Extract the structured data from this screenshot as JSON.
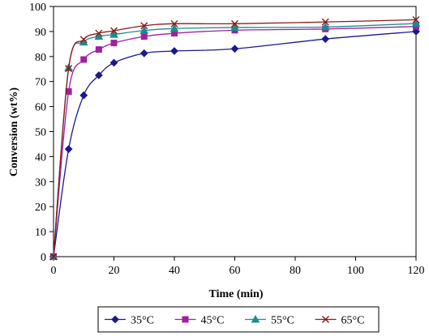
{
  "chart_data": {
    "type": "line",
    "xlabel": "Time (min)",
    "ylabel": "Conversion (wt%)",
    "xlim": [
      0,
      120
    ],
    "ylim": [
      0,
      100
    ],
    "x_ticks": [
      "0",
      "20",
      "40",
      "60",
      "80",
      "100",
      "120"
    ],
    "y_ticks": [
      "0",
      "10",
      "20",
      "30",
      "40",
      "50",
      "60",
      "70",
      "80",
      "90",
      "100"
    ],
    "grid": false,
    "legend_position": "bottom",
    "series": [
      {
        "name": "35°C",
        "color": "#1a1a8c",
        "marker": "diamond",
        "points": [
          [
            0,
            0
          ],
          [
            5,
            43
          ],
          [
            10,
            64.5
          ],
          [
            15,
            72.5
          ],
          [
            20,
            77.5
          ],
          [
            30,
            81.3
          ],
          [
            40,
            82.2
          ],
          [
            60,
            83.1
          ],
          [
            90,
            87
          ],
          [
            120,
            90
          ]
        ]
      },
      {
        "name": "45°C",
        "color": "#a0209e",
        "marker": "square",
        "points": [
          [
            0,
            0
          ],
          [
            5,
            66
          ],
          [
            10,
            78.8
          ],
          [
            15,
            82.8
          ],
          [
            20,
            85.4
          ],
          [
            30,
            88
          ],
          [
            40,
            89.3
          ],
          [
            60,
            90.5
          ],
          [
            90,
            91
          ],
          [
            120,
            92
          ]
        ]
      },
      {
        "name": "55°C",
        "color": "#1b8c8c",
        "marker": "triangle",
        "points": [
          [
            0,
            0
          ],
          [
            5,
            75.5
          ],
          [
            10,
            85.7
          ],
          [
            15,
            88
          ],
          [
            20,
            88.8
          ],
          [
            30,
            90.4
          ],
          [
            40,
            91.2
          ],
          [
            60,
            91.6
          ],
          [
            90,
            91.8
          ],
          [
            120,
            93.2
          ]
        ]
      },
      {
        "name": "65°C",
        "color": "#8c1a1a",
        "marker": "x",
        "points": [
          [
            0,
            0
          ],
          [
            5,
            75.2
          ],
          [
            10,
            86.8
          ],
          [
            15,
            89.3
          ],
          [
            20,
            90.3
          ],
          [
            30,
            92.3
          ],
          [
            40,
            93.1
          ],
          [
            60,
            93.1
          ],
          [
            90,
            93.8
          ],
          [
            120,
            94.7
          ]
        ]
      }
    ]
  }
}
